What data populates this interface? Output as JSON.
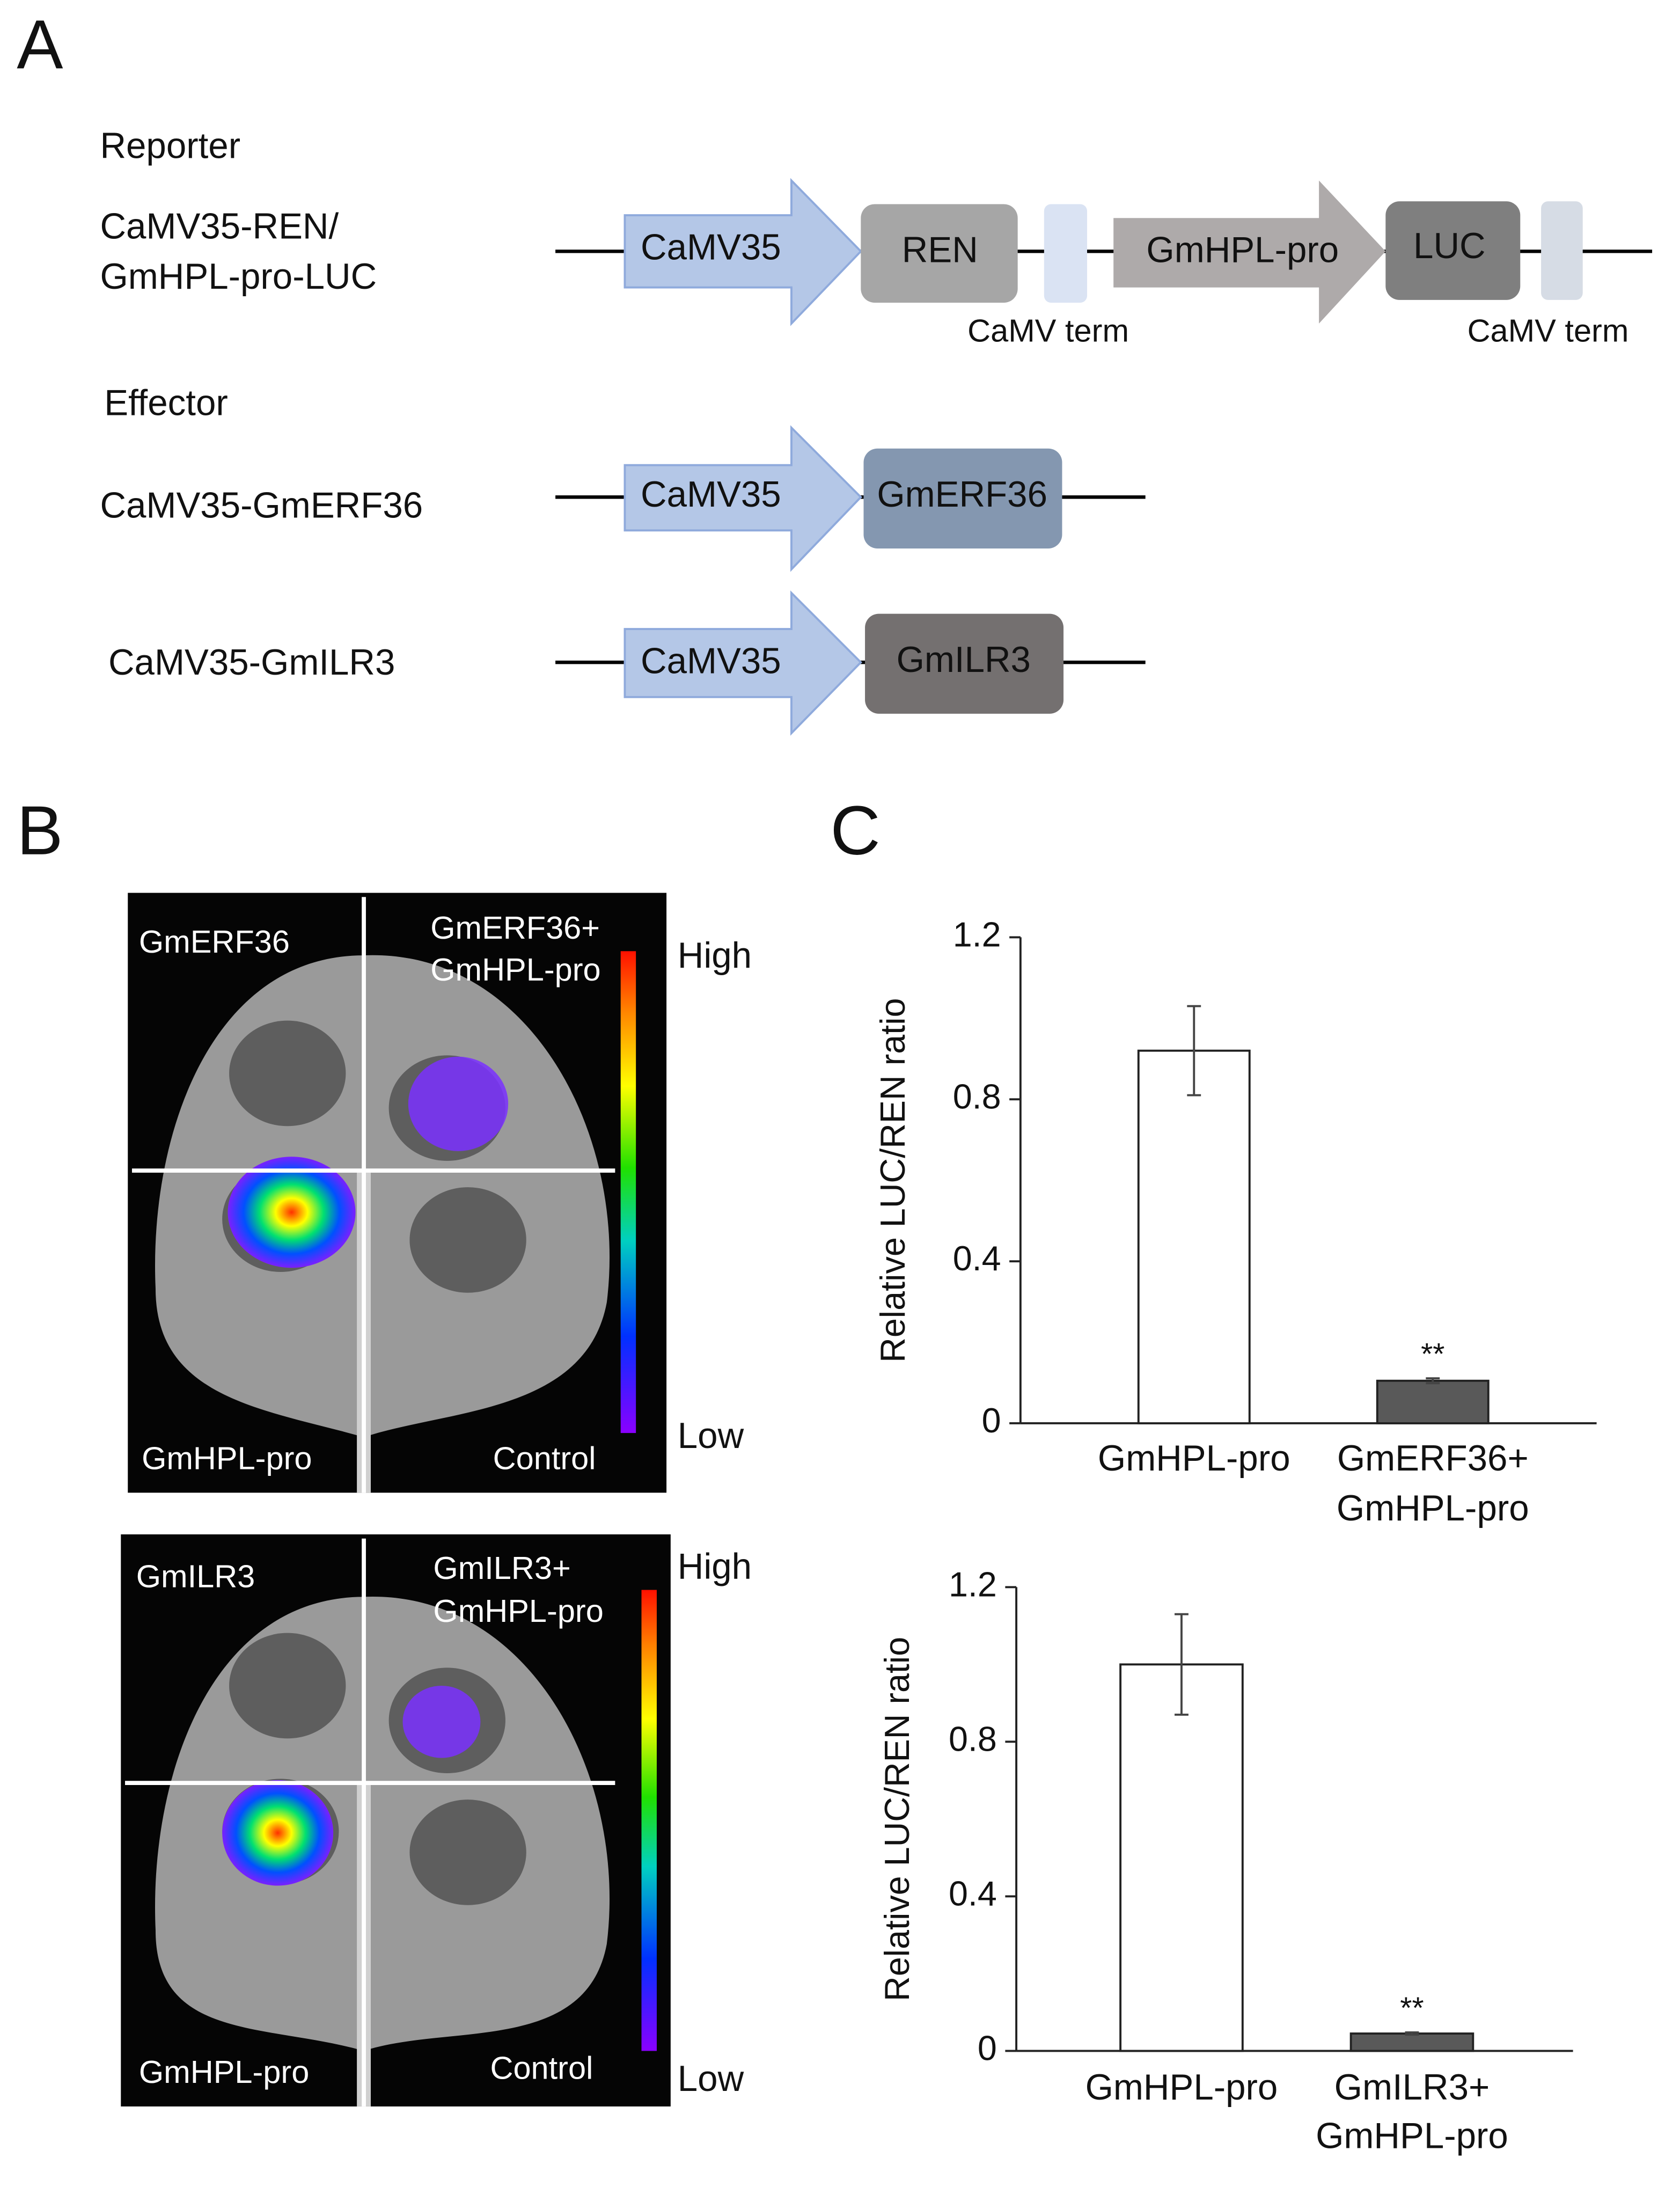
{
  "panels": {
    "a": "A",
    "b": "B",
    "c": "C"
  },
  "diagram": {
    "reporter_heading": "Reporter",
    "reporter_name": [
      "CaMV35-REN/",
      "GmHPL-pro-LUC"
    ],
    "reporter_parts": {
      "promoter1": "CaMV35",
      "gene1": "REN",
      "term1": "CaMV term",
      "promoter2": "GmHPL-pro",
      "gene2": "LUC",
      "term2": "CaMV term"
    },
    "effector_heading": "Effector",
    "effectors": [
      {
        "name": "CaMV35-GmERF36",
        "promoter": "CaMV35",
        "gene": "GmERF36"
      },
      {
        "name": "CaMV35-GmILR3",
        "promoter": "CaMV35",
        "gene": "GmILR3"
      }
    ]
  },
  "images": [
    {
      "top_left": "GmERF36",
      "top_right": [
        "GmERF36+",
        "GmHPL-pro"
      ],
      "bottom_left": "GmHPL-pro",
      "bottom_right": "Control",
      "scale_high": "High",
      "scale_low": "Low"
    },
    {
      "top_left": "GmILR3",
      "top_right": [
        "GmILR3+",
        "GmHPL-pro"
      ],
      "bottom_left": "GmHPL-pro",
      "bottom_right": "Control",
      "scale_high": "High",
      "scale_low": "Low"
    }
  ],
  "chart_data": [
    {
      "type": "bar",
      "y_label": "Relative LUC/REN ratio",
      "categories": [
        "GmHPL-pro",
        "GmERF36+\nGmHPL-pro"
      ],
      "values": [
        0.92,
        0.105
      ],
      "errors": [
        0.11,
        0.006
      ],
      "colors": [
        "#ffffff",
        "#595959"
      ],
      "annotation": "**",
      "ylim": [
        0,
        1.2
      ],
      "yticks": [
        0,
        0.4,
        0.8,
        1.2
      ]
    },
    {
      "type": "bar",
      "y_label": "Relative LUC/REN ratio",
      "categories": [
        "GmHPL-pro",
        "GmILR3+\nGmHPL-pro"
      ],
      "values": [
        1.0,
        0.045
      ],
      "errors": [
        0.13,
        0.003
      ],
      "colors": [
        "#ffffff",
        "#595959"
      ],
      "annotation": "**",
      "ylim": [
        0,
        1.2
      ],
      "yticks": [
        0,
        0.4,
        0.8,
        1.2
      ]
    }
  ]
}
